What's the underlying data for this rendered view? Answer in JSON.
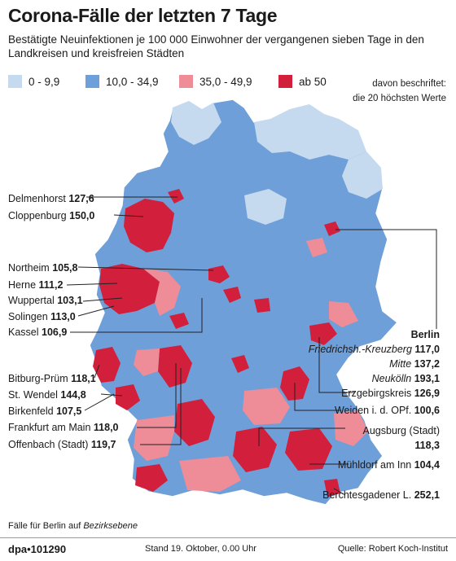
{
  "title": "Corona-Fälle der letzten 7 Tage",
  "subtitle": "Bestätigte Neuinfektionen je 100 000 Einwohner der vergangenen sieben Tage in den Landkreisen und kreisfreien Städten",
  "legend": [
    {
      "label": "0 - 9,9",
      "color": "#c5d9ef"
    },
    {
      "label": "10,0 - 34,9",
      "color": "#6f9fd8"
    },
    {
      "label": "35,0 - 49,9",
      "color": "#ee8c98"
    },
    {
      "label": "ab 50",
      "color": "#d21f3c"
    }
  ],
  "legend_note": [
    "davon beschriftet:",
    "die 20 höchsten Werte"
  ],
  "labels_left": [
    {
      "name": "Delmenhorst",
      "value": "127,6"
    },
    {
      "name": "Cloppenburg",
      "value": "150,0"
    },
    {
      "name": "Northeim",
      "value": "105,8"
    },
    {
      "name": "Herne",
      "value": "111,2"
    },
    {
      "name": "Wuppertal",
      "value": "103,1"
    },
    {
      "name": "Solingen",
      "value": "113,0"
    },
    {
      "name": "Kassel",
      "value": "106,9"
    },
    {
      "name": "Bitburg-Prüm",
      "value": "118,1"
    },
    {
      "name": "St. Wendel",
      "value": "144,8"
    },
    {
      "name": "Birkenfeld",
      "value": "107,5"
    },
    {
      "name": "Frankfurt am Main",
      "value": "118,0"
    },
    {
      "name": "Offenbach (Stadt)",
      "value": "119,7"
    }
  ],
  "berlin": {
    "header": "Berlin",
    "items": [
      {
        "name": "Friedrichsh.-Kreuzberg",
        "value": "117,0"
      },
      {
        "name": "Mitte",
        "value": "137,2"
      },
      {
        "name": "Neukölln",
        "value": "193,1"
      }
    ]
  },
  "labels_right": [
    {
      "name": "Erzgebirgskreis",
      "value": "126,9"
    },
    {
      "name": "Weiden i. d. OPf.",
      "value": "100,6"
    },
    {
      "name": "Augsburg (Stadt)",
      "value": "118,3"
    },
    {
      "name": "Mühldorf am Inn",
      "value": "104,4"
    },
    {
      "name": "Berchtesgadener L.",
      "value": "252,1"
    }
  ],
  "footnote": {
    "text": "Fälle für Berlin auf ",
    "emph": "Bezirksebene"
  },
  "footer": {
    "agency": "dpa•101290",
    "stand": "Stand 19. Oktober, 0.00 Uhr",
    "source": "Quelle: Robert Koch-Institut"
  }
}
